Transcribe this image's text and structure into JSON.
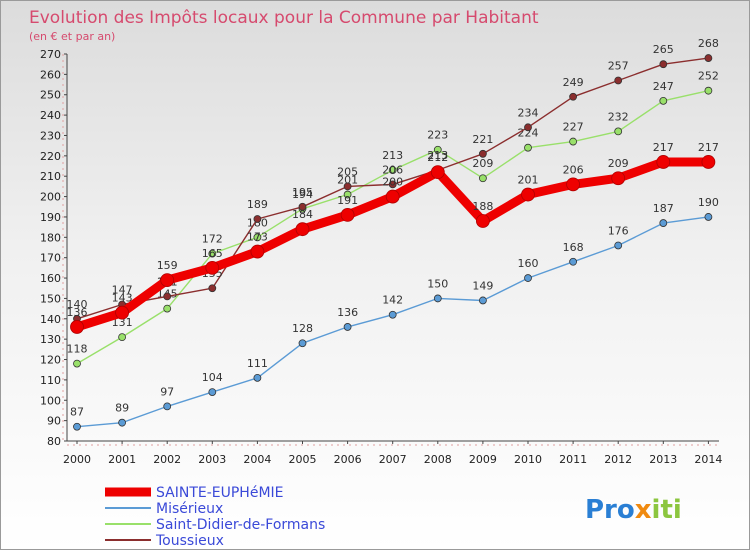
{
  "chart_data": {
    "type": "line",
    "title": "Evolution des Impôts locaux pour la Commune par Habitant",
    "subtitle": "(en € et par an)",
    "xlabel": "",
    "ylabel": "",
    "ylim": [
      80,
      270
    ],
    "ytick_step": 10,
    "x": [
      "2000",
      "2001",
      "2002",
      "2003",
      "2004",
      "2005",
      "2006",
      "2007",
      "2008",
      "2009",
      "2010",
      "2011",
      "2012",
      "2013",
      "2014"
    ],
    "series": [
      {
        "name": "SAINTE-EUPHéMIE",
        "color": "#ee0000",
        "values": [
          136,
          143,
          159,
          165,
          173,
          184,
          191,
          200,
          212,
          188,
          201,
          206,
          209,
          217,
          217
        ]
      },
      {
        "name": "Misérieux",
        "color": "#5b9bd5",
        "values": [
          87,
          89,
          97,
          104,
          111,
          128,
          136,
          142,
          150,
          149,
          160,
          168,
          176,
          187,
          190
        ]
      },
      {
        "name": "Saint-Didier-de-Formans",
        "color": "#99e06a",
        "values": [
          118,
          131,
          145,
          172,
          180,
          194,
          201,
          213,
          223,
          209,
          224,
          227,
          232,
          247,
          252
        ]
      },
      {
        "name": "Toussieux",
        "color": "#8b2e2e",
        "values": [
          140,
          147,
          151,
          155,
          189,
          195,
          205,
          206,
          213,
          221,
          234,
          249,
          257,
          265,
          268
        ]
      }
    ],
    "legend_position": "bottom-left",
    "grid": false
  },
  "logo": {
    "parts": [
      "Pro",
      "x",
      "iti"
    ],
    "colors": [
      "#2a7fd4",
      "#f08a10",
      "#8cc63f"
    ]
  }
}
